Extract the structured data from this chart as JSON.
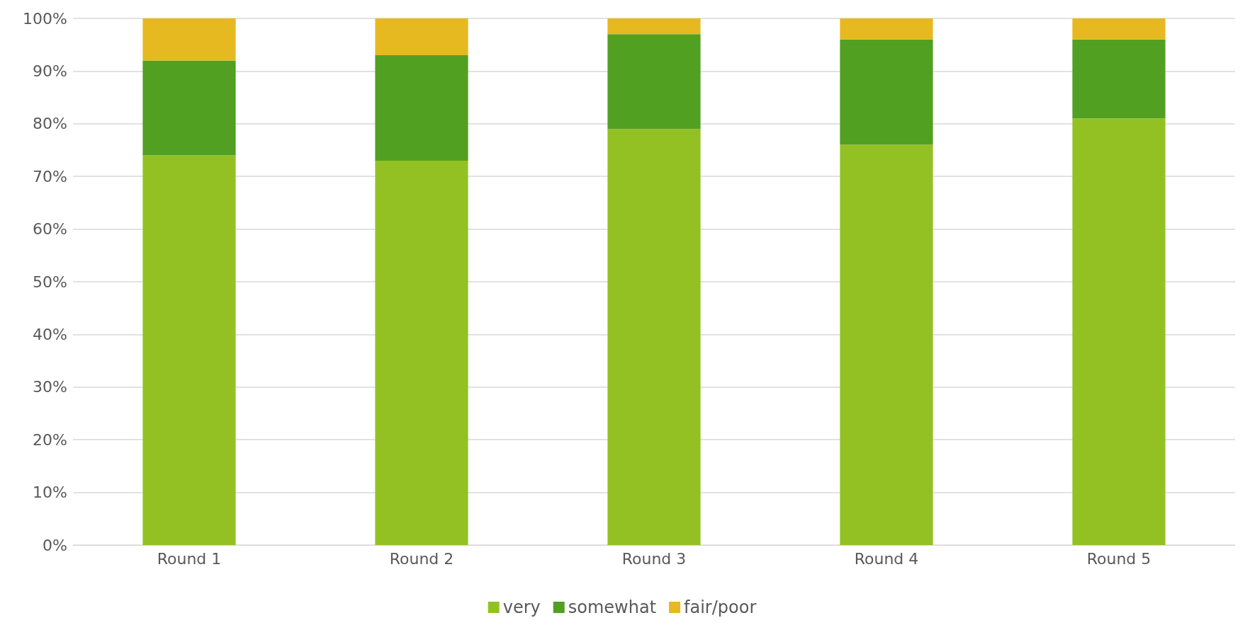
{
  "chart_data": {
    "type": "bar",
    "stacked": true,
    "categories": [
      "Round 1",
      "Round 2",
      "Round 3",
      "Round 4",
      "Round 5"
    ],
    "series": [
      {
        "name": "very",
        "color": "#93c124",
        "values": [
          74,
          73,
          79,
          76,
          81
        ]
      },
      {
        "name": "somewhat",
        "color": "#52a022",
        "values": [
          18,
          20,
          18,
          20,
          15
        ]
      },
      {
        "name": "fair/poor",
        "color": "#e6b920",
        "values": [
          8,
          7,
          3,
          4,
          4
        ]
      }
    ],
    "ylim": [
      0,
      100
    ],
    "yticks": [
      {
        "value": 0,
        "label": "0%"
      },
      {
        "value": 10,
        "label": "10%"
      },
      {
        "value": 20,
        "label": "20%"
      },
      {
        "value": 30,
        "label": "30%"
      },
      {
        "value": 40,
        "label": "40%"
      },
      {
        "value": 50,
        "label": "50%"
      },
      {
        "value": 60,
        "label": "60%"
      },
      {
        "value": 70,
        "label": "70%"
      },
      {
        "value": 80,
        "label": "80%"
      },
      {
        "value": 90,
        "label": "90%"
      },
      {
        "value": 100,
        "label": "100%"
      }
    ],
    "grid": "y",
    "legend": "bottom"
  }
}
